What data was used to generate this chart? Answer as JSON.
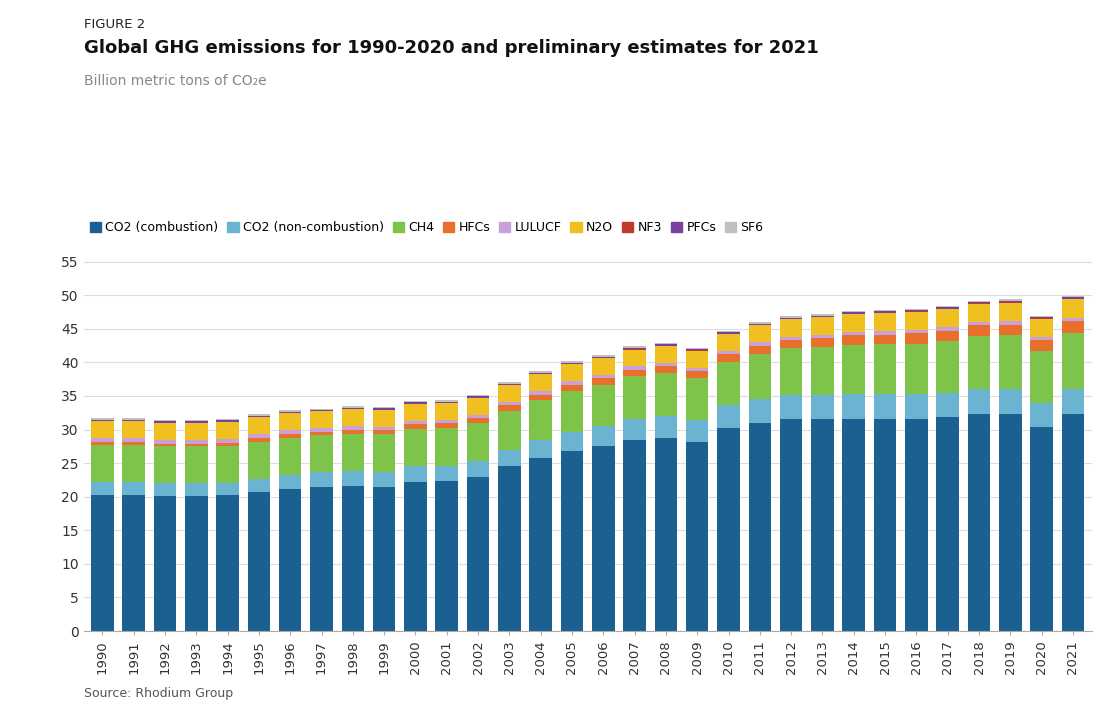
{
  "title_small": "FIGURE 2",
  "title_main": "Global GHG emissions for 1990-2020 and preliminary estimates for 2021",
  "ylabel": "Billion metric tons of CO₂e",
  "source": "Source: Rhodium Group",
  "years": [
    1990,
    1991,
    1992,
    1993,
    1994,
    1995,
    1996,
    1997,
    1998,
    1999,
    2000,
    2001,
    2002,
    2003,
    2004,
    2005,
    2006,
    2007,
    2008,
    2009,
    2010,
    2011,
    2012,
    2013,
    2014,
    2015,
    2016,
    2017,
    2018,
    2019,
    2020,
    2021
  ],
  "series": {
    "CO2 (combustion)": [
      20.2,
      20.2,
      20.1,
      20.1,
      20.2,
      20.7,
      21.2,
      21.5,
      21.6,
      21.5,
      22.2,
      22.3,
      22.9,
      24.5,
      25.7,
      26.8,
      27.5,
      28.5,
      28.8,
      28.2,
      30.2,
      31.0,
      31.5,
      31.5,
      31.5,
      31.5,
      31.5,
      31.8,
      32.3,
      32.3,
      30.4,
      32.3
    ],
    "CO2 (non-combustion)": [
      2.0,
      2.0,
      1.9,
      1.9,
      1.9,
      2.0,
      2.1,
      2.1,
      2.2,
      2.2,
      2.3,
      2.3,
      2.4,
      2.5,
      2.7,
      2.9,
      3.0,
      3.1,
      3.2,
      3.2,
      3.4,
      3.6,
      3.7,
      3.7,
      3.8,
      3.8,
      3.8,
      3.7,
      3.7,
      3.7,
      3.5,
      3.8
    ],
    "CH4": [
      5.5,
      5.5,
      5.5,
      5.5,
      5.5,
      5.5,
      5.5,
      5.6,
      5.6,
      5.6,
      5.6,
      5.6,
      5.7,
      5.8,
      6.0,
      6.1,
      6.2,
      6.3,
      6.4,
      6.3,
      6.5,
      6.7,
      6.9,
      7.1,
      7.3,
      7.4,
      7.5,
      7.7,
      7.9,
      8.0,
      7.8,
      8.3
    ],
    "HFCs": [
      0.4,
      0.4,
      0.4,
      0.4,
      0.4,
      0.5,
      0.5,
      0.5,
      0.6,
      0.6,
      0.7,
      0.7,
      0.7,
      0.8,
      0.8,
      0.9,
      0.9,
      1.0,
      1.0,
      1.0,
      1.1,
      1.2,
      1.2,
      1.3,
      1.4,
      1.4,
      1.5,
      1.5,
      1.6,
      1.6,
      1.6,
      1.7
    ],
    "LULUCF": [
      0.6,
      0.6,
      0.6,
      0.6,
      0.6,
      0.6,
      0.6,
      0.5,
      0.5,
      0.5,
      0.5,
      0.5,
      0.5,
      0.5,
      0.5,
      0.5,
      0.5,
      0.5,
      0.5,
      0.5,
      0.5,
      0.5,
      0.5,
      0.5,
      0.5,
      0.5,
      0.5,
      0.5,
      0.5,
      0.5,
      0.5,
      0.5
    ],
    "N2O": [
      2.5,
      2.5,
      2.5,
      2.5,
      2.5,
      2.5,
      2.5,
      2.5,
      2.5,
      2.5,
      2.5,
      2.5,
      2.5,
      2.5,
      2.5,
      2.5,
      2.5,
      2.5,
      2.5,
      2.5,
      2.5,
      2.5,
      2.6,
      2.6,
      2.7,
      2.7,
      2.7,
      2.7,
      2.7,
      2.8,
      2.7,
      2.8
    ],
    "NF3": [
      0.02,
      0.02,
      0.02,
      0.02,
      0.02,
      0.02,
      0.02,
      0.02,
      0.03,
      0.03,
      0.03,
      0.03,
      0.04,
      0.04,
      0.05,
      0.05,
      0.06,
      0.06,
      0.07,
      0.07,
      0.07,
      0.07,
      0.07,
      0.07,
      0.07,
      0.07,
      0.07,
      0.07,
      0.07,
      0.07,
      0.07,
      0.07
    ],
    "PFCs": [
      0.25,
      0.25,
      0.25,
      0.25,
      0.25,
      0.25,
      0.25,
      0.2,
      0.2,
      0.2,
      0.2,
      0.2,
      0.2,
      0.2,
      0.2,
      0.2,
      0.2,
      0.2,
      0.2,
      0.2,
      0.2,
      0.2,
      0.2,
      0.2,
      0.2,
      0.2,
      0.2,
      0.2,
      0.2,
      0.2,
      0.2,
      0.2
    ],
    "SF6": [
      0.2,
      0.2,
      0.2,
      0.2,
      0.2,
      0.2,
      0.2,
      0.2,
      0.2,
      0.2,
      0.2,
      0.2,
      0.2,
      0.2,
      0.2,
      0.2,
      0.2,
      0.2,
      0.2,
      0.2,
      0.2,
      0.2,
      0.2,
      0.2,
      0.2,
      0.2,
      0.2,
      0.2,
      0.2,
      0.2,
      0.2,
      0.2
    ]
  },
  "colors": {
    "CO2 (combustion)": "#1a6090",
    "CO2 (non-combustion)": "#6ab4d2",
    "CH4": "#7ec44a",
    "HFCs": "#e8702a",
    "LULUCF": "#c9a0dc",
    "N2O": "#f0c020",
    "NF3": "#c0392b",
    "PFCs": "#7b3fa0",
    "SF6": "#c0c0c0"
  },
  "ylim": [
    0,
    57
  ],
  "yticks": [
    0,
    5,
    10,
    15,
    20,
    25,
    30,
    35,
    40,
    45,
    50,
    55
  ],
  "bg_color": "#ffffff",
  "bar_width": 0.72
}
